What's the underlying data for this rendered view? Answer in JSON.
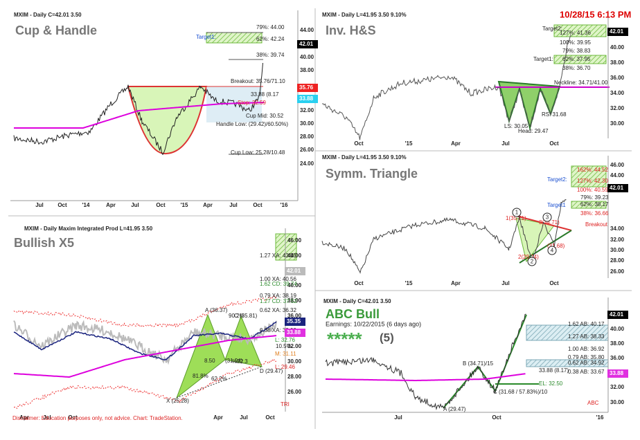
{
  "panels": [
    {
      "header": "MXIM - Daily C=42.01 3.50",
      "title": "Cup & Handle",
      "yticks": [
        "44.00",
        "40.00",
        "38.00",
        "32.00",
        "30.00",
        "28.00",
        "26.00",
        "24.00"
      ],
      "xticks": [
        "Jul",
        "Oct",
        "'14",
        "Apr",
        "Jul",
        "Oct",
        "'15",
        "Apr",
        "Jul",
        "Oct",
        "'16"
      ],
      "notes": [
        "79%: 44.00",
        "Target1:",
        "62%: 42.24",
        "38%: 39.74",
        "Breakout: 35.76/71.10",
        "33.88 (8.17",
        "Stop: 32.59",
        "Cup Mid: 30.52",
        "Handle Low: (29.42)/60.50%)",
        "Cup Low: 25.28/10.48"
      ],
      "badges": [
        "42.01",
        "35.76",
        "33.88"
      ]
    },
    {
      "header": "MXIM - Daily L=41.95 3.50 9.10%",
      "stamp": "10/28/15 6:13 PM",
      "title": "Inv. H&S",
      "yticks": [
        "40.00",
        "38.00",
        "36.00",
        "34.00",
        "32.00",
        "30.00"
      ],
      "xticks": [
        "Oct",
        "'15",
        "Apr",
        "Jul",
        "Oct"
      ],
      "notes": [
        "Target2:",
        "127%: 41.36",
        "100%: 39.95",
        "79%: 38.83",
        "Target1:",
        "62%: 37.95",
        "38%: 36.70",
        "Neckline: 34.71/41.00",
        "RS: 31.68",
        "LS: 30.05",
        "Head: 29.47"
      ],
      "badges": [
        "42.01"
      ]
    },
    {
      "header": "MXIM - Daily L=41.95 3.50 9.10%",
      "title": "Symm. Triangle",
      "yticks": [
        "46.00",
        "44.00",
        "34.00",
        "32.00",
        "30.00",
        "28.00",
        "26.00"
      ],
      "xticks": [
        "Oct",
        "'15",
        "Apr",
        "Jul",
        "Oct"
      ],
      "notes": [
        "162%: 44.52",
        "Target2:",
        "127%: 42.30",
        "100%: 40.59",
        "79%: 39.23",
        "Target1",
        "62%: 38.17",
        "38%: 36.66",
        "Breakout",
        "1(35.71)",
        "3(34.71)",
        "2(29.74)",
        "(31.68)"
      ],
      "markers": [
        "1",
        "2",
        "3",
        "4"
      ],
      "badges": [
        "42.01"
      ]
    },
    {
      "header": "MXIM - Daily Maxim Integrated Prod L=41.95 3.50",
      "title": "Bullish X5",
      "yticks": [
        "46.00",
        "44.00",
        "40.00",
        "38.00",
        "36.00",
        "32.00",
        "30.00",
        "28.00",
        "26.00"
      ],
      "xticks": [
        "Apr",
        "Jul",
        "Oct",
        "Apr",
        "Jul",
        "Oct"
      ],
      "notes": [
        "1.27 XA: 43.55",
        "1.00 XA: 40.56",
        "1.62 CD: 39.74",
        "0.79 XA: 38.19",
        "1.27 CD: 37.52",
        "0.62 XA: 36.32",
        "A (36.37)",
        "90.2%",
        "C (35.81)",
        "0.38 XA: 33.99",
        "L: 32.76",
        "10.5%",
        "M: 31.11",
        "(31.94)",
        "8.50",
        "%22.3",
        "L: 29.46",
        "D (29.47)",
        "81.8%",
        "62.2%",
        "X (25.28)",
        "TRI"
      ],
      "disclaimer": "Disclaimer: Education purposes only, not advice. Chart: TradeStation.",
      "badges": [
        "42.01",
        "35.35",
        "33.88"
      ]
    },
    {
      "header": "MXIM - Daily C=42.01 3.50",
      "title": "ABC Bull",
      "earnings": "Earnings: 10/22/2015 (6 days ago)",
      "stars": "*****",
      "rating": "(5)",
      "yticks": [
        "40.00",
        "38.00",
        "36.00",
        "32.00",
        "30.00"
      ],
      "xticks": [
        "Jul",
        "Oct",
        "'16"
      ],
      "notes": [
        "1.62 AB: 40.17",
        "1.27 AB: 38.33",
        "1.00 AB: 36.92",
        "0.79 AB: 35.80",
        "0.62 AB: 34.92",
        "33.88 (8.17)",
        "0.38 AB: 33.67",
        "B (34.71)/15",
        "EL: 32.50",
        "C (31.68 / 57.83%)/10",
        "A (29.47)",
        "ABC"
      ],
      "badges": [
        "42.01",
        "33.88"
      ]
    }
  ]
}
